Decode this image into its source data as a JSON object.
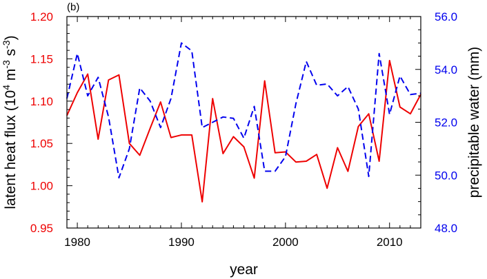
{
  "chart_data": {
    "type": "line",
    "panel_label": "(b)",
    "xlabel": "year",
    "ylabel_left": {
      "main": "latent heat flux (10",
      "sup1": "4",
      "mid1": " m",
      "sup2": "-3",
      "mid2": " s",
      "sup3": "-3",
      "end": ")"
    },
    "ylabel_right": "precipitable water (mm)",
    "xlim": [
      1979,
      2013
    ],
    "ylim_left": [
      0.95,
      1.2
    ],
    "ylim_right": [
      48.0,
      56.0
    ],
    "x_ticks": [
      1980,
      1990,
      2000,
      2010
    ],
    "x_tick_labels": [
      "1980",
      "1990",
      "2000",
      "2010"
    ],
    "y_left_ticks": [
      0.95,
      1.0,
      1.05,
      1.1,
      1.15,
      1.2
    ],
    "y_left_tick_labels": [
      "0.95",
      "1.00",
      "1.05",
      "1.10",
      "1.15",
      "1.20"
    ],
    "y_right_ticks": [
      48,
      50,
      52,
      54,
      56
    ],
    "y_right_tick_labels": [
      "48.0",
      "50.0",
      "52.0",
      "54.0",
      "56.0"
    ],
    "grid": false,
    "x": [
      1979,
      1980,
      1981,
      1982,
      1983,
      1984,
      1985,
      1986,
      1987,
      1988,
      1989,
      1990,
      1991,
      1992,
      1993,
      1994,
      1995,
      1996,
      1997,
      1998,
      1999,
      2000,
      2001,
      2002,
      2003,
      2004,
      2005,
      2006,
      2007,
      2008,
      2009,
      2010,
      2011,
      2012,
      2013
    ],
    "series": [
      {
        "axis": "left",
        "color": "#ee0000",
        "style": "solid",
        "values": [
          1.083,
          1.11,
          1.132,
          1.055,
          1.125,
          1.131,
          1.05,
          1.036,
          1.068,
          1.099,
          1.057,
          1.06,
          1.06,
          0.981,
          1.103,
          1.038,
          1.058,
          1.046,
          1.009,
          1.124,
          1.039,
          1.04,
          1.028,
          1.029,
          1.037,
          0.997,
          1.045,
          1.017,
          1.07,
          1.085,
          1.029,
          1.148,
          1.093,
          1.085,
          1.108
        ]
      },
      {
        "axis": "right",
        "color": "#0000ee",
        "style": "dashed",
        "values": [
          52.9,
          54.6,
          53.0,
          53.7,
          52.2,
          49.9,
          51.0,
          53.3,
          52.8,
          51.8,
          52.9,
          55.0,
          54.7,
          51.8,
          52.0,
          52.2,
          52.15,
          51.4,
          52.6,
          50.15,
          50.15,
          50.7,
          52.7,
          54.3,
          53.4,
          53.45,
          53.0,
          53.35,
          52.5,
          49.95,
          54.6,
          52.3,
          53.75,
          53.05,
          53.1
        ]
      }
    ],
    "colors": {
      "left_axis": "#ee0000",
      "right_axis": "#0000ee",
      "frame": "#000000"
    }
  }
}
